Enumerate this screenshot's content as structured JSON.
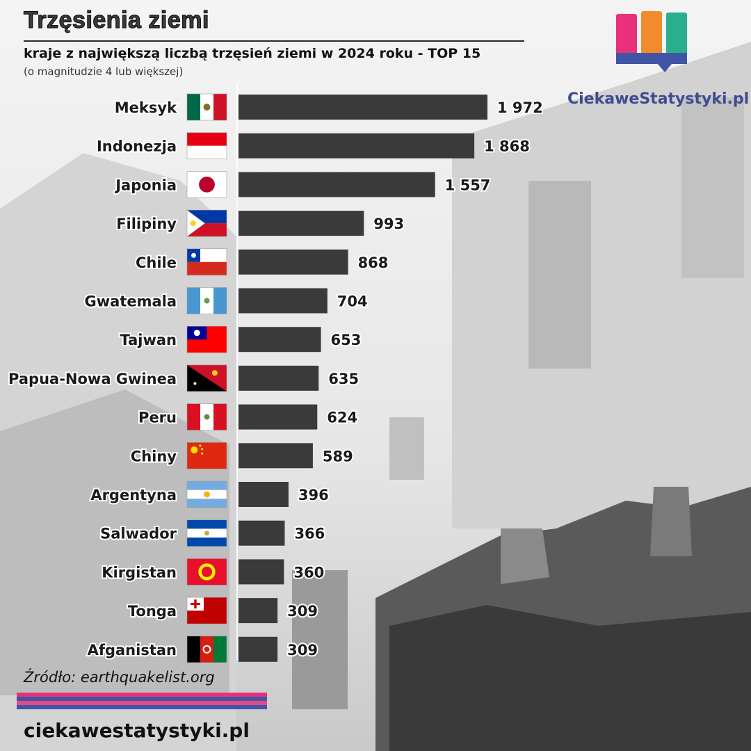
{
  "header": {
    "title": "Trzęsienia ziemi",
    "subtitle": "kraje z największą liczbą trzęsień ziemi w 2024 roku - TOP 15",
    "note": "(o magnitudzie 4 lub większej)"
  },
  "brand": {
    "logo_text": "CiekaweStatystyki.pl",
    "site": "ciekawestatystyki.pl",
    "colors": [
      "#e8317a",
      "#f28b2d",
      "#2aae8c",
      "#4155a6"
    ]
  },
  "footer": {
    "source": "Źródło: earthquakelist.org"
  },
  "chart_data": {
    "type": "bar",
    "orientation": "horizontal",
    "categories": [
      "Meksyk",
      "Indonezja",
      "Japonia",
      "Filipiny",
      "Chile",
      "Gwatemala",
      "Tajwan",
      "Papua-Nowa Gwinea",
      "Peru",
      "Chiny",
      "Argentyna",
      "Salwador",
      "Kirgistan",
      "Tonga",
      "Afganistan"
    ],
    "values": [
      1972,
      1868,
      1557,
      993,
      868,
      704,
      653,
      635,
      624,
      589,
      396,
      366,
      360,
      309,
      309
    ],
    "value_labels": [
      "1 972",
      "1 868",
      "1 557",
      "993",
      "868",
      "704",
      "653",
      "635",
      "624",
      "589",
      "396",
      "366",
      "360",
      "309",
      "309"
    ],
    "flags": [
      "flag-mexico",
      "flag-indonesia",
      "flag-japan",
      "flag-philippines",
      "flag-chile",
      "flag-guatemala",
      "flag-taiwan",
      "flag-papua-new-guinea",
      "flag-peru",
      "flag-china",
      "flag-argentina",
      "flag-el-salvador",
      "flag-kyrgyzstan",
      "flag-tonga",
      "flag-afghanistan"
    ],
    "bar_color": "#3a3a3a",
    "xlim": [
      0,
      1972
    ],
    "grid": false
  }
}
